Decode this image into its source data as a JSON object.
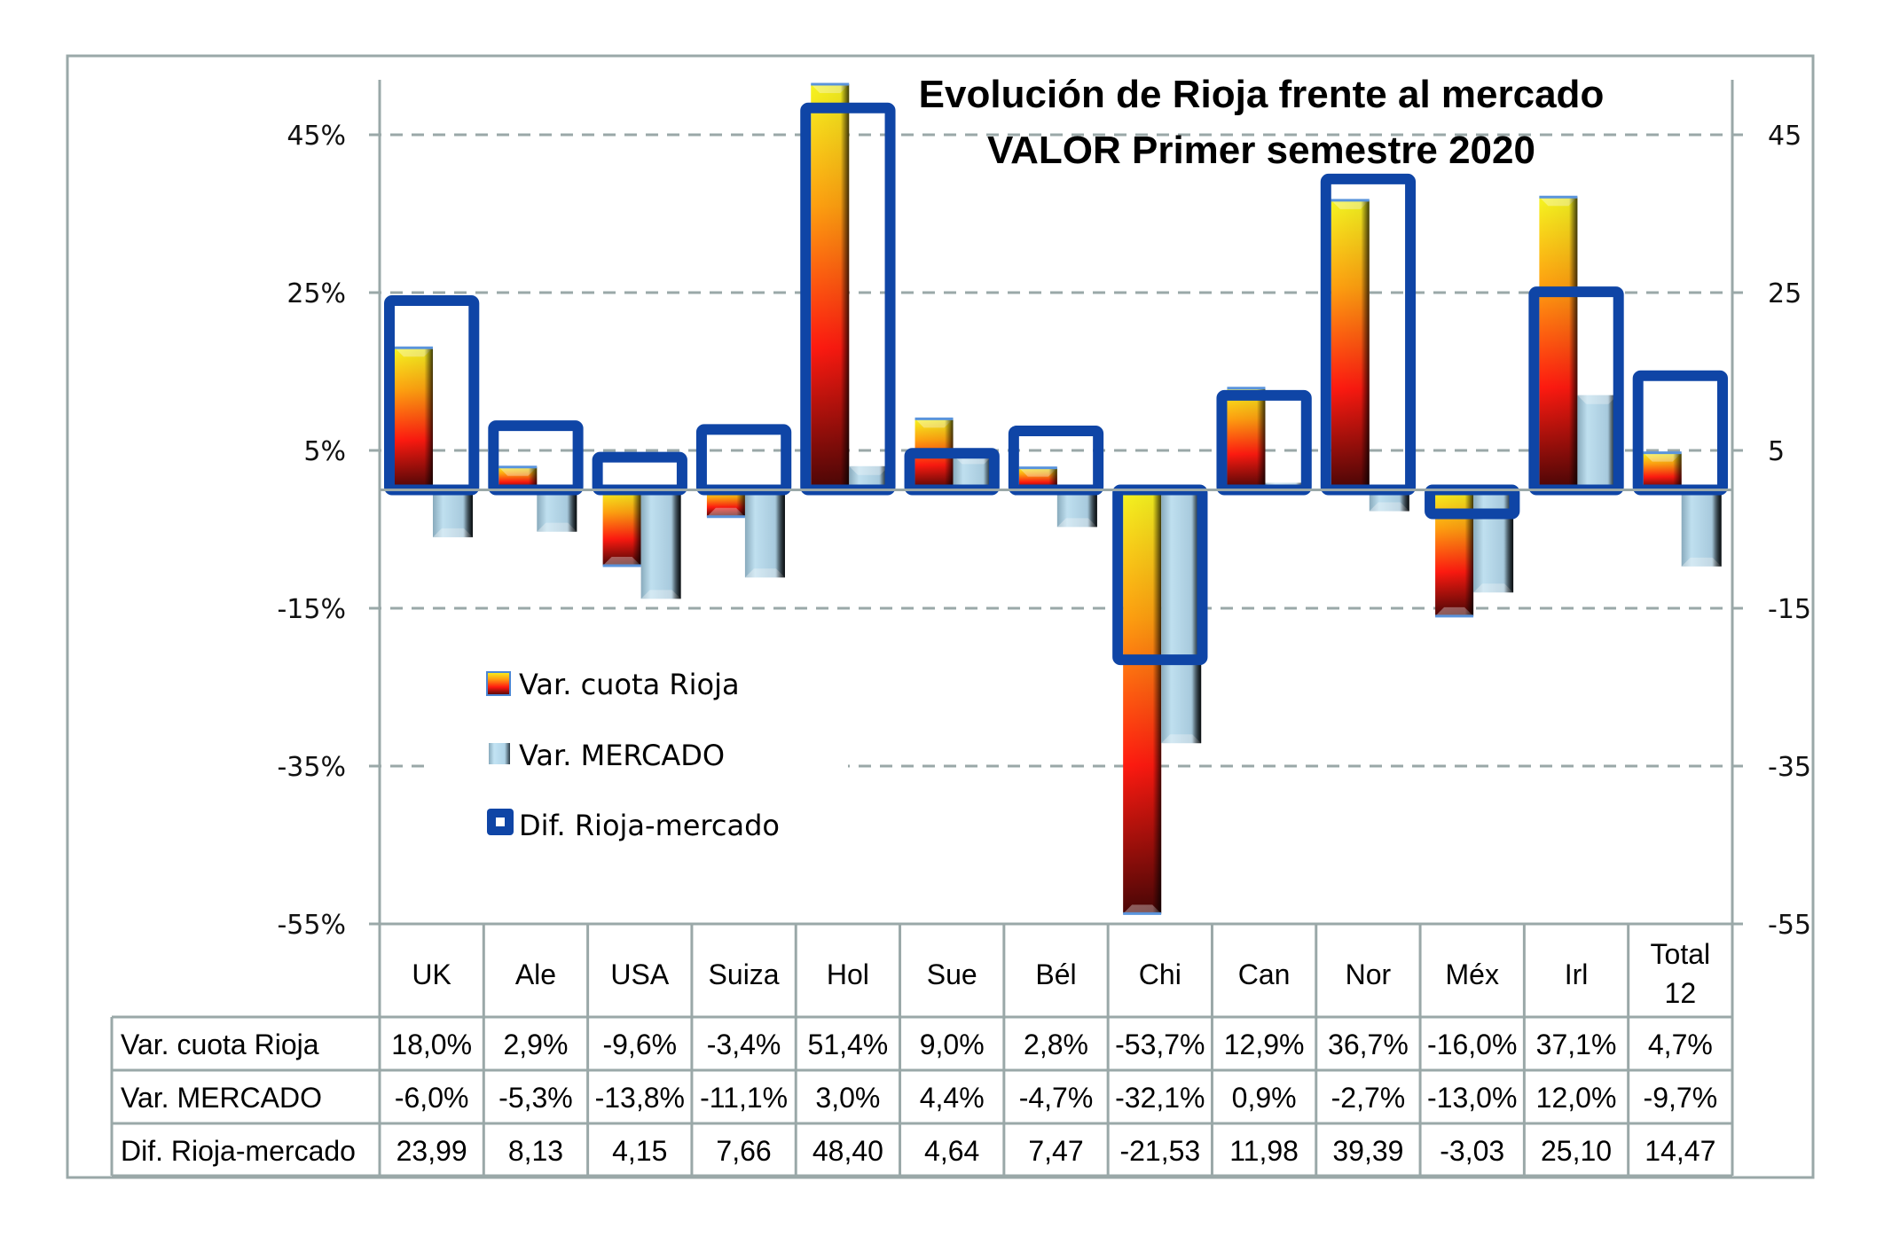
{
  "chart_data": {
    "type": "bar",
    "title": "Evolución de Rioja frente al mercado",
    "subtitle": "VALOR Primer semestre 2020",
    "categories": [
      "UK",
      "Ale",
      "USA",
      "Suiza",
      "Hol",
      "Sue",
      "Bél",
      "Chi",
      "Can",
      "Nor",
      "Méx",
      "Irl",
      "Total 12"
    ],
    "series": [
      {
        "name": "Var. cuota Rioja",
        "axis": "left",
        "unit": "%",
        "color": "#ff2a1a",
        "values": [
          18.0,
          2.9,
          -9.6,
          -3.4,
          51.4,
          9.0,
          2.8,
          -53.7,
          12.9,
          36.7,
          -16.0,
          37.1,
          4.7
        ],
        "labels": [
          "18,0%",
          "2,9%",
          "-9,6%",
          "-3,4%",
          "51,4%",
          "9,0%",
          "2,8%",
          "-53,7%",
          "12,9%",
          "36,7%",
          "-16,0%",
          "37,1%",
          "4,7%"
        ]
      },
      {
        "name": "Var. MERCADO",
        "axis": "left",
        "unit": "%",
        "color": "#a9d4ea",
        "values": [
          -6.0,
          -5.3,
          -13.8,
          -11.1,
          3.0,
          4.4,
          -4.7,
          -32.1,
          0.9,
          -2.7,
          -13.0,
          12.0,
          -9.7
        ],
        "labels": [
          "-6,0%",
          "-5,3%",
          "-13,8%",
          "-11,1%",
          "3,0%",
          "4,4%",
          "-4,7%",
          "-32,1%",
          "0,9%",
          "-2,7%",
          "-13,0%",
          "12,0%",
          "-9,7%"
        ]
      },
      {
        "name": "Dif. Rioja-mercado",
        "axis": "right",
        "unit": "",
        "color": "#0f45a6",
        "values": [
          23.99,
          8.13,
          4.15,
          7.66,
          48.4,
          4.64,
          7.47,
          -21.53,
          11.98,
          39.39,
          -3.03,
          25.1,
          14.47
        ],
        "labels": [
          "23,99",
          "8,13",
          "4,15",
          "7,66",
          "48,40",
          "4,64",
          "7,47",
          "-21,53",
          "11,98",
          "39,39",
          "-3,03",
          "25,10",
          "14,47"
        ]
      }
    ],
    "y_left": {
      "ticks": [
        45,
        25,
        5,
        -15,
        -35,
        -55
      ],
      "tick_labels": [
        "45%",
        "25%",
        "5%",
        "-15%",
        "-35%",
        "-55%"
      ],
      "range": [
        -55,
        45
      ]
    },
    "y_right": {
      "ticks": [
        45,
        25,
        5,
        -15,
        -35,
        -55
      ],
      "tick_labels": [
        "45",
        "25",
        "5",
        "-15",
        "-35",
        "-55"
      ],
      "range": [
        -55,
        45
      ]
    },
    "grid": true,
    "legend": {
      "placement": "center-left",
      "entries": [
        "Var. cuota Rioja",
        "Var. MERCADO",
        "Dif. Rioja-mercado"
      ]
    },
    "data_table": true
  }
}
